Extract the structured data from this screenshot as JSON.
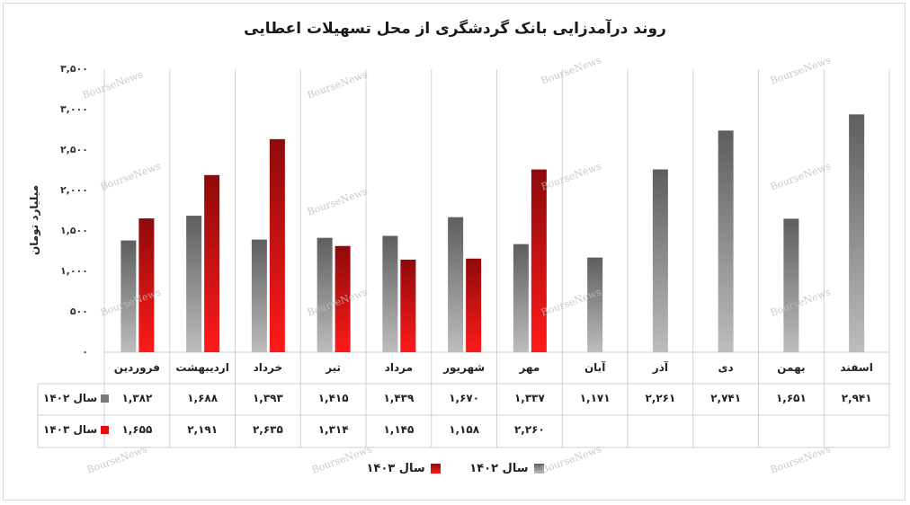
{
  "chart_data": {
    "type": "bar",
    "title": "روند درآمدزایی بانک گردشگری از محل تسهیلات اعطایی",
    "ylabel": "میلیارد تومان",
    "ylim": [
      0,
      3500
    ],
    "yticks": [
      "۰",
      "۵۰۰",
      "۱,۰۰۰",
      "۱,۵۰۰",
      "۲,۰۰۰",
      "۲,۵۰۰",
      "۳,۰۰۰",
      "۳,۵۰۰"
    ],
    "ytick_values": [
      0,
      500,
      1000,
      1500,
      2000,
      2500,
      3000,
      3500
    ],
    "categories": [
      "فروردین",
      "اردیبهشت",
      "خرداد",
      "تیر",
      "مرداد",
      "شهریور",
      "مهر",
      "آبان",
      "آذر",
      "دی",
      "بهمن",
      "اسفند"
    ],
    "series": [
      {
        "name": "سال ۱۴۰۲",
        "color": "#7a7a7a",
        "values": [
          1382,
          1688,
          1393,
          1415,
          1439,
          1670,
          1337,
          1171,
          2261,
          2741,
          1651,
          2941
        ],
        "labels": [
          "۱,۳۸۲",
          "۱,۶۸۸",
          "۱,۳۹۳",
          "۱,۴۱۵",
          "۱,۴۳۹",
          "۱,۶۷۰",
          "۱,۳۳۷",
          "۱,۱۷۱",
          "۲,۲۶۱",
          "۲,۷۴۱",
          "۱,۶۵۱",
          "۲,۹۴۱"
        ]
      },
      {
        "name": "سال ۱۴۰۳",
        "color": "#e01010",
        "values": [
          1655,
          2191,
          2635,
          1314,
          1145,
          1158,
          2260,
          null,
          null,
          null,
          null,
          null
        ],
        "labels": [
          "۱,۶۵۵",
          "۲,۱۹۱",
          "۲,۶۳۵",
          "۱,۳۱۴",
          "۱,۱۴۵",
          "۱,۱۵۸",
          "۲,۲۶۰",
          "",
          "",
          "",
          "",
          ""
        ]
      }
    ],
    "grid": "vertical",
    "legend": "bottom"
  },
  "watermark": "BourseNews"
}
